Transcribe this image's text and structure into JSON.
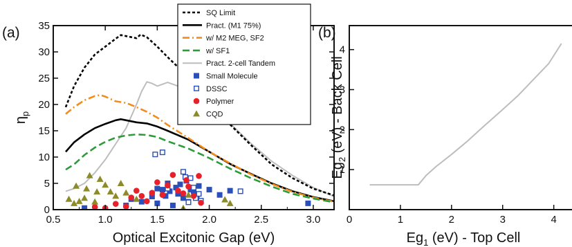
{
  "chart_data": [
    {
      "panel_label": "(a)",
      "type": "line",
      "xlabel": "Optical Excitonic Gap (eV)",
      "ylabel": "η",
      "ylabel_sub": "p",
      "xlim": [
        0.5,
        3.2
      ],
      "ylim": [
        0,
        35
      ],
      "xticks": [
        "0.5",
        "1.0",
        "1.5",
        "2.0",
        "2.5",
        "3.0"
      ],
      "yticks": [
        "0",
        "5",
        "10",
        "15",
        "20",
        "25",
        "30",
        "35"
      ],
      "legend_position": "top-right",
      "series": [
        {
          "name": "SQ Limit",
          "style": "dotted",
          "color": "#000000",
          "x": [
            0.62,
            0.7,
            0.8,
            0.9,
            1.0,
            1.1,
            1.15,
            1.2,
            1.3,
            1.34,
            1.4,
            1.5,
            1.6,
            1.8,
            2.0,
            2.2,
            2.4,
            2.6,
            2.8,
            3.0,
            3.2
          ],
          "y": [
            19.5,
            23.5,
            27,
            29.5,
            31,
            32.5,
            33.2,
            33,
            32.6,
            33.3,
            32.8,
            31,
            29,
            25.2,
            20.8,
            16.2,
            12.3,
            8.6,
            6,
            4,
            2.7
          ]
        },
        {
          "name": "Pract. (M1 75%)",
          "style": "solid",
          "color": "#000000",
          "x": [
            0.62,
            0.7,
            0.8,
            0.9,
            1.0,
            1.1,
            1.15,
            1.2,
            1.3,
            1.4,
            1.5,
            1.6,
            1.8,
            2.0,
            2.2,
            2.4,
            2.6,
            2.8,
            3.0,
            3.2
          ],
          "y": [
            11,
            12.8,
            14.3,
            15.5,
            16.3,
            17,
            17.2,
            17,
            16.6,
            16.4,
            15.8,
            15,
            13.3,
            11,
            8.7,
            6.8,
            5,
            3.5,
            2.4,
            1.6
          ]
        },
        {
          "name": "w/ M2 MEG, SF2",
          "style": "dashdot",
          "color": "#f28c1e",
          "x": [
            0.62,
            0.7,
            0.8,
            0.9,
            0.95,
            1.0,
            1.1,
            1.2,
            1.3,
            1.4,
            1.5,
            1.6,
            1.8,
            2.0,
            2.2,
            2.4,
            2.6,
            2.8,
            3.0,
            3.2
          ],
          "y": [
            18.2,
            19.5,
            20.8,
            21.6,
            21.8,
            21.5,
            20.6,
            20.3,
            19.5,
            18.6,
            17.5,
            16.1,
            13.6,
            11,
            8.8,
            6.7,
            4.9,
            3.4,
            2.3,
            1.5
          ]
        },
        {
          "name": "w/ SF1",
          "style": "dashed",
          "color": "#2e9b3a",
          "x": [
            0.62,
            0.7,
            0.8,
            0.9,
            1.0,
            1.1,
            1.2,
            1.3,
            1.4,
            1.5,
            1.6,
            1.8,
            2.0,
            2.2,
            2.4,
            2.6,
            2.8,
            3.0,
            3.2
          ],
          "y": [
            7.6,
            8.6,
            10.4,
            11.8,
            12.9,
            13.7,
            14.1,
            14.3,
            14.2,
            13.8,
            13,
            11.6,
            9.8,
            7.8,
            6,
            4.4,
            3,
            2.1,
            1.4
          ]
        },
        {
          "name": "Pract. 2-cell Tandem",
          "style": "solid-light",
          "color": "#bdbdbd",
          "x": [
            0.62,
            0.7,
            0.8,
            0.9,
            1.0,
            1.1,
            1.2,
            1.3,
            1.35,
            1.4,
            1.45,
            1.5,
            1.6,
            1.7,
            1.8,
            1.9,
            2.0,
            2.2,
            2.4,
            2.6,
            2.8,
            3.0,
            3.2
          ],
          "y": [
            3.5,
            4,
            5,
            7,
            9.5,
            12.5,
            15.5,
            20,
            22.5,
            24.3,
            24,
            23.5,
            24.2,
            23.5,
            22.6,
            21.2,
            19.6,
            16.4,
            12.6,
            9.2,
            6.5,
            4.2,
            2.5
          ]
        },
        {
          "name": "Small Molecule",
          "marker": "filled-square",
          "color": "#2a4fb8",
          "x": [
            0.8,
            1.2,
            1.25,
            1.35,
            1.45,
            1.5,
            1.5,
            1.55,
            1.58,
            1.6,
            1.62,
            1.65,
            1.68,
            1.7,
            1.72,
            1.75,
            1.78,
            1.8,
            1.82,
            1.85,
            1.88,
            1.9,
            2.0,
            2.1,
            2.2,
            2.95
          ],
          "y": [
            0.3,
            0.8,
            2,
            1.5,
            2.5,
            1.2,
            4,
            3.8,
            2.6,
            5,
            3.5,
            0.8,
            4.2,
            3,
            4.8,
            2.2,
            5.5,
            1.5,
            3.8,
            3.5,
            2.5,
            4.5,
            3.8,
            2.8,
            3.6,
            1.2
          ]
        },
        {
          "name": "DSSC",
          "marker": "open-square",
          "color": "#2a4fb8",
          "x": [
            1.48,
            1.55,
            1.6,
            1.75,
            1.77,
            1.8,
            1.82,
            1.85,
            1.87,
            1.9,
            1.92,
            2.3
          ],
          "y": [
            10.5,
            10.9,
            4,
            7.2,
            6.2,
            1.4,
            6,
            4.2,
            2.2,
            3,
            1.7,
            3.5
          ]
        },
        {
          "name": "Polymer",
          "marker": "filled-circle",
          "color": "#e8202a",
          "x": [
            0.9,
            1.0,
            1.1,
            1.2,
            1.25,
            1.3,
            1.35,
            1.4,
            1.45,
            1.5,
            1.55,
            1.6,
            1.65,
            1.7,
            1.75,
            1.78,
            1.8,
            1.85,
            1.9,
            1.92
          ],
          "y": [
            0.5,
            0.3,
            1.1,
            0.6,
            2.3,
            3.6,
            2.6,
            1.6,
            3.2,
            5.2,
            2.8,
            4.6,
            6.6,
            3.6,
            3.1,
            5.6,
            4.4,
            2.6,
            6.4,
            1.3
          ]
        },
        {
          "name": "CQD",
          "marker": "filled-triangle",
          "color": "#8b8b2a",
          "x": [
            0.65,
            0.7,
            0.72,
            0.75,
            0.8,
            0.82,
            0.85,
            0.9,
            0.92,
            0.95,
            1.0,
            1.05,
            1.1,
            1.15,
            1.2,
            1.3,
            1.75,
            1.8,
            2.15,
            2.2
          ],
          "y": [
            2,
            1.2,
            4.5,
            1.6,
            2.2,
            4,
            6.5,
            1.5,
            3.4,
            5.8,
            4.7,
            3.4,
            2.6,
            5,
            3.2,
            2,
            0.3,
            2.8,
            1.9,
            1.2
          ]
        }
      ]
    },
    {
      "panel_label": "(b)",
      "type": "line",
      "xlabel": "Eg",
      "xlabel_sub": "1",
      "xlabel_rest": " (eV) - Top Cell",
      "ylabel": "Eg",
      "ylabel_sub": "2",
      "ylabel_rest": " (eV) - Back Cell",
      "xlim": [
        0,
        4.6
      ],
      "ylim": [
        0,
        4.6
      ],
      "xticks": [
        "0",
        "1",
        "2",
        "3",
        "4"
      ],
      "yticks": [
        "1",
        "2",
        "3",
        "4"
      ],
      "series": [
        {
          "name": "",
          "style": "solid-light",
          "color": "#bdbdbd",
          "x": [
            0.4,
            1.0,
            1.35,
            1.5,
            1.7,
            2.0,
            2.3,
            2.6,
            3.0,
            3.3,
            3.6,
            3.9,
            4.15
          ],
          "y": [
            0.62,
            0.62,
            0.62,
            0.85,
            1.08,
            1.38,
            1.7,
            2.05,
            2.5,
            2.85,
            3.25,
            3.65,
            4.15
          ]
        }
      ]
    }
  ]
}
